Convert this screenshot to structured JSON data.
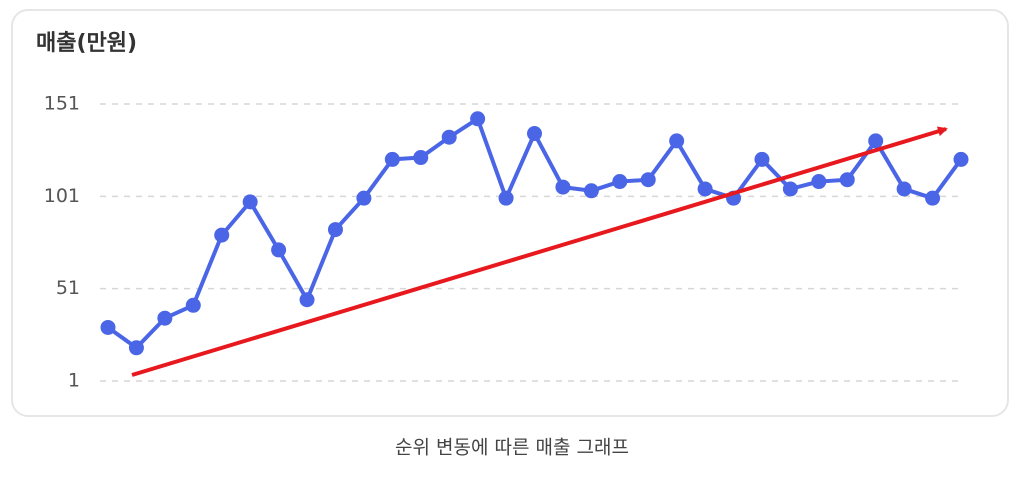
{
  "chart_data": {
    "type": "line",
    "title": "매출(만원)",
    "caption": "순위 변동에 따른 매출 그래프",
    "categories": [
      null,
      null,
      null,
      null,
      null,
      null,
      null,
      null,
      null,
      null,
      null,
      null,
      null,
      null,
      null,
      null,
      null,
      null,
      null,
      null,
      null,
      null,
      null,
      null,
      null,
      null,
      null,
      null,
      null,
      null,
      null
    ],
    "series": [
      {
        "color": "#4a66e6",
        "values": [
          30,
          19,
          35,
          42,
          80,
          98,
          72,
          45,
          83,
          100,
          121,
          122,
          133,
          143,
          100,
          135,
          106,
          104,
          109,
          110,
          131,
          105,
          100,
          121,
          105,
          109,
          110,
          131,
          105,
          100,
          121
        ]
      }
    ],
    "ylim": [
      1,
      151
    ],
    "yticks": [
      1,
      51,
      101,
      151
    ],
    "grid": true
  }
}
